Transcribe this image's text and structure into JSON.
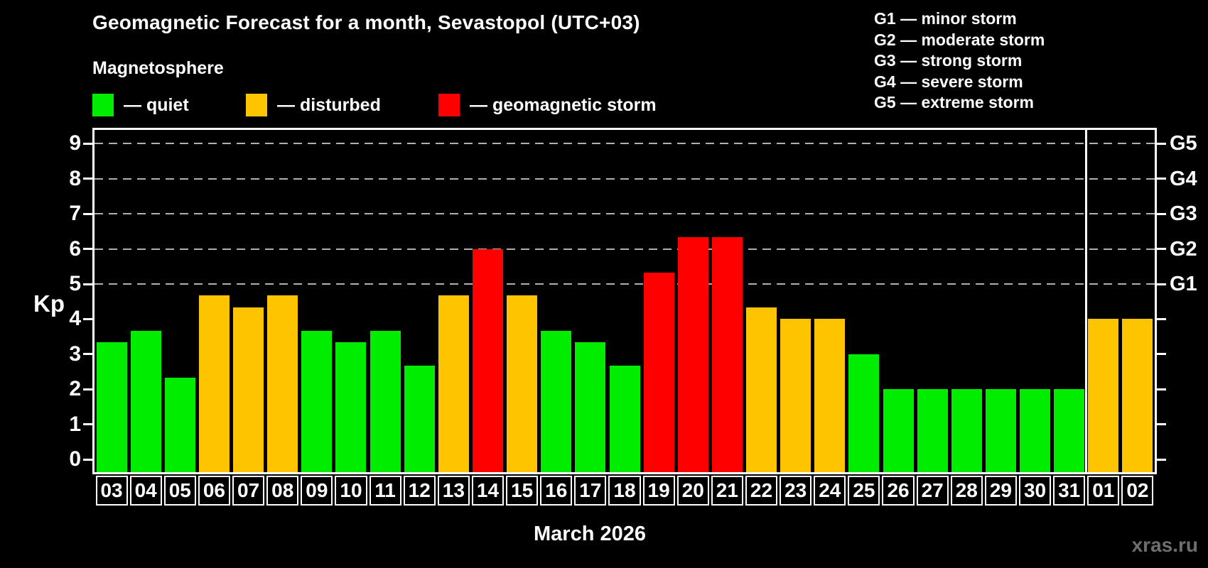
{
  "header": {
    "title": "Geomagnetic Forecast for a month, Sevastopol (UTC+03)",
    "subtitle": "Magnetosphere"
  },
  "legend": {
    "items": [
      {
        "name": "quiet",
        "label": "— quiet",
        "color": "#00ed00"
      },
      {
        "name": "disturbed",
        "label": "— disturbed",
        "color": "#ffc400"
      },
      {
        "name": "storm",
        "label": "— geomagnetic storm",
        "color": "#ff0000"
      }
    ]
  },
  "g_legend": {
    "lines": [
      "G1 — minor storm",
      "G2 — moderate storm",
      "G3 — strong storm",
      "G4 — severe storm",
      "G5 — extreme storm"
    ]
  },
  "axes": {
    "y_title": "Kp",
    "y_ticks": [
      "0",
      "1",
      "2",
      "3",
      "4",
      "5",
      "6",
      "7",
      "8",
      "9"
    ],
    "right_ticks": [
      {
        "label": "G1",
        "kp": 5
      },
      {
        "label": "G2",
        "kp": 6
      },
      {
        "label": "G3",
        "kp": 7
      },
      {
        "label": "G4",
        "kp": 8
      },
      {
        "label": "G5",
        "kp": 9
      }
    ],
    "x_title": "March 2026"
  },
  "footer": {
    "watermark": "xras.ru"
  },
  "colors": {
    "background": "#000000",
    "axis": "#ffffff",
    "grid": "#b0b0b0",
    "quiet": "#00ed00",
    "disturbed": "#ffc400",
    "storm": "#ff0000",
    "watermark": "#6e6e6e"
  },
  "chart_data": {
    "type": "bar",
    "title": "Geomagnetic Forecast for a month, Sevastopol (UTC+03)",
    "xlabel": "March 2026",
    "ylabel": "Kp",
    "ylim": [
      0,
      9.4
    ],
    "grid": "dashed horizontal lines at Kp 5,6,7,8,9",
    "legend_position": "top-left",
    "right_axis_mapping": "G1=Kp5, G2=Kp6, G3=Kp7, G4=Kp8, G5=Kp9",
    "new_month_separator_before_index": 29,
    "days": [
      {
        "day": "03",
        "kp": 3.33,
        "status": "quiet"
      },
      {
        "day": "04",
        "kp": 3.67,
        "status": "quiet"
      },
      {
        "day": "05",
        "kp": 2.33,
        "status": "quiet"
      },
      {
        "day": "06",
        "kp": 4.67,
        "status": "disturbed"
      },
      {
        "day": "07",
        "kp": 4.33,
        "status": "disturbed"
      },
      {
        "day": "08",
        "kp": 4.67,
        "status": "disturbed"
      },
      {
        "day": "09",
        "kp": 3.67,
        "status": "quiet"
      },
      {
        "day": "10",
        "kp": 3.33,
        "status": "quiet"
      },
      {
        "day": "11",
        "kp": 3.67,
        "status": "quiet"
      },
      {
        "day": "12",
        "kp": 2.67,
        "status": "quiet"
      },
      {
        "day": "13",
        "kp": 4.67,
        "status": "disturbed"
      },
      {
        "day": "14",
        "kp": 6.0,
        "status": "storm"
      },
      {
        "day": "15",
        "kp": 4.67,
        "status": "disturbed"
      },
      {
        "day": "16",
        "kp": 3.67,
        "status": "quiet"
      },
      {
        "day": "17",
        "kp": 3.33,
        "status": "quiet"
      },
      {
        "day": "18",
        "kp": 2.67,
        "status": "quiet"
      },
      {
        "day": "19",
        "kp": 5.33,
        "status": "storm"
      },
      {
        "day": "20",
        "kp": 6.33,
        "status": "storm"
      },
      {
        "day": "21",
        "kp": 6.33,
        "status": "storm"
      },
      {
        "day": "22",
        "kp": 4.33,
        "status": "disturbed"
      },
      {
        "day": "23",
        "kp": 4.0,
        "status": "disturbed"
      },
      {
        "day": "24",
        "kp": 4.0,
        "status": "disturbed"
      },
      {
        "day": "25",
        "kp": 3.0,
        "status": "quiet"
      },
      {
        "day": "26",
        "kp": 2.0,
        "status": "quiet"
      },
      {
        "day": "27",
        "kp": 2.0,
        "status": "quiet"
      },
      {
        "day": "28",
        "kp": 2.0,
        "status": "quiet"
      },
      {
        "day": "29",
        "kp": 2.0,
        "status": "quiet"
      },
      {
        "day": "30",
        "kp": 2.0,
        "status": "quiet"
      },
      {
        "day": "31",
        "kp": 2.0,
        "status": "quiet"
      },
      {
        "day": "01",
        "kp": 4.0,
        "status": "disturbed"
      },
      {
        "day": "02",
        "kp": 4.0,
        "status": "disturbed"
      }
    ]
  }
}
